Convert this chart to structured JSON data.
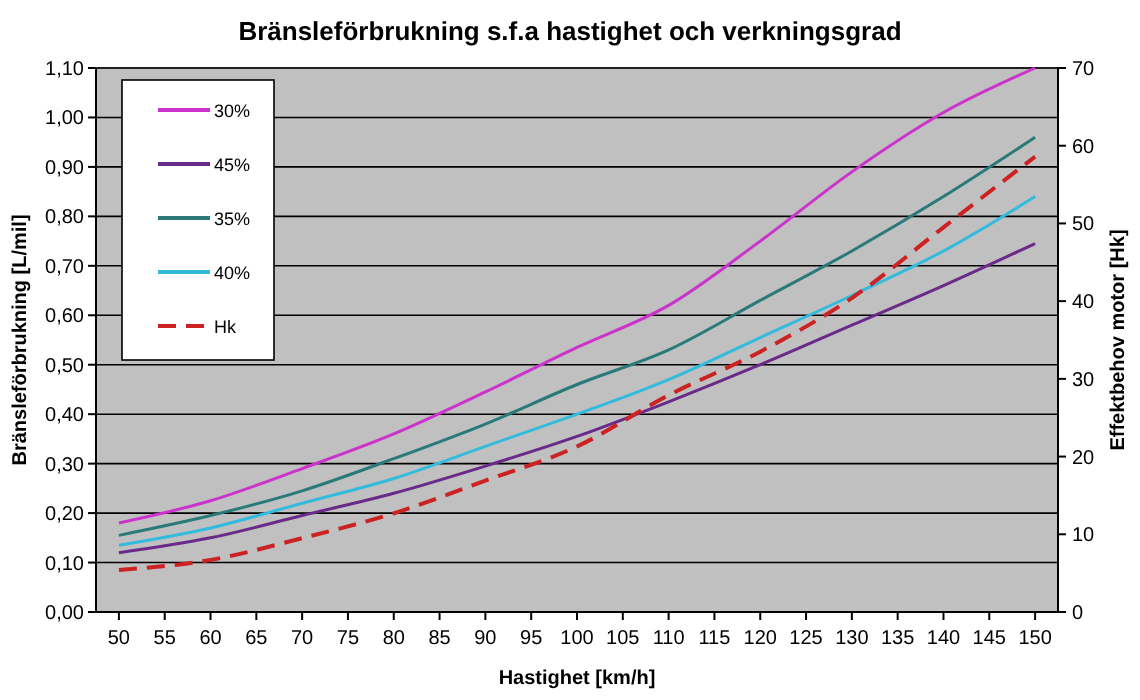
{
  "chart_data": {
    "type": "line",
    "title": "Bränsleförbrukning s.f.a hastighet och verkningsgrad",
    "xlabel": "Hastighet [km/h]",
    "ylabel": "Bränsleförbrukning [L/mil]",
    "y2label": "Effektbehov motor [Hk]",
    "x": [
      50,
      60,
      70,
      80,
      90,
      100,
      110,
      120,
      130,
      140,
      150
    ],
    "series": [
      {
        "name": "30%",
        "color": "#cc33cc",
        "values": [
          0.18,
          0.225,
          0.29,
          0.36,
          0.445,
          0.535,
          0.62,
          0.75,
          0.89,
          1.01,
          1.1
        ]
      },
      {
        "name": "45%",
        "color": "#6a2a8a",
        "values": [
          0.12,
          0.15,
          0.195,
          0.24,
          0.295,
          0.355,
          0.425,
          0.5,
          0.58,
          0.66,
          0.745
        ]
      },
      {
        "name": "35%",
        "color": "#2a7a7a",
        "values": [
          0.155,
          0.195,
          0.245,
          0.31,
          0.38,
          0.46,
          0.53,
          0.63,
          0.73,
          0.84,
          0.96
        ]
      },
      {
        "name": "40%",
        "color": "#33bbdd",
        "values": [
          0.135,
          0.17,
          0.22,
          0.27,
          0.335,
          0.4,
          0.47,
          0.555,
          0.64,
          0.73,
          0.84
        ]
      },
      {
        "name": "Hk",
        "color": "#cc2222",
        "axis": "y2",
        "line_style": "dashed",
        "values": [
          5.4,
          6.7,
          9.5,
          12.7,
          16.9,
          21.3,
          27.9,
          33.5,
          40.4,
          49.5,
          58.6
        ]
      }
    ],
    "xlim": [
      47.5,
      152.5
    ],
    "xticks": [
      50,
      55,
      60,
      65,
      70,
      75,
      80,
      85,
      90,
      95,
      100,
      105,
      110,
      115,
      120,
      125,
      130,
      135,
      140,
      145,
      150
    ],
    "ylim": [
      0,
      1.1
    ],
    "yticks": [
      {
        "value": 0,
        "label": "0,00"
      },
      {
        "value": 0.1,
        "label": "0,10"
      },
      {
        "value": 0.2,
        "label": "0,20"
      },
      {
        "value": 0.3,
        "label": "0,30"
      },
      {
        "value": 0.4,
        "label": "0,40"
      },
      {
        "value": 0.5,
        "label": "0,50"
      },
      {
        "value": 0.6,
        "label": "0,60"
      },
      {
        "value": 0.7,
        "label": "0,70"
      },
      {
        "value": 0.8,
        "label": "0,80"
      },
      {
        "value": 0.9,
        "label": "0,90"
      },
      {
        "value": 1,
        "label": "1,00"
      },
      {
        "value": 1.1,
        "label": "1,10"
      }
    ],
    "y2lim": [
      0,
      70
    ],
    "y2ticks": [
      0,
      10,
      20,
      30,
      40,
      50,
      60,
      70
    ],
    "grid": "y",
    "legend": "top left",
    "line_style": "solid"
  }
}
